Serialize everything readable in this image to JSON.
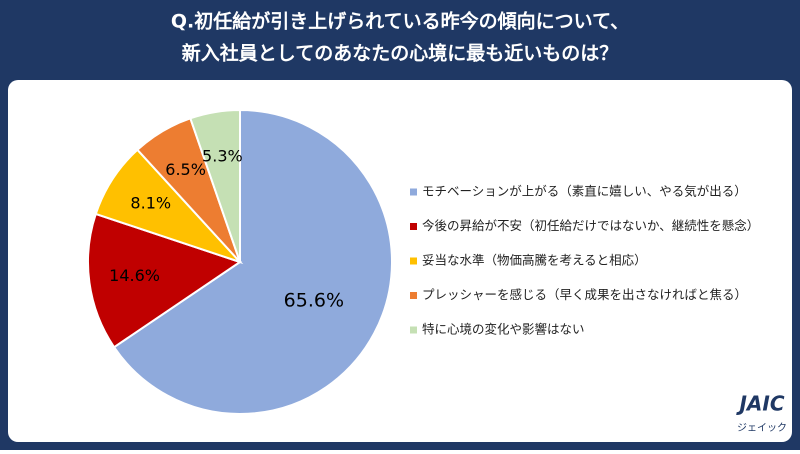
{
  "chart_data": {
    "type": "pie",
    "title": [
      "Q.初任給が引き上げられている昨今の傾向について、",
      "新入社員としてのあなたの心境に最も近いものは？"
    ],
    "categories": [
      "モチベーションが上がる（素直に嬉しい、やる気が出る）",
      "今後の昇給が不安（初任給だけではないか、継続性を懸念）",
      "妥当な水準（物価高騰を考えると相応）",
      "プレッシャーを感じる（早く成果を出さなければと焦る）",
      "特に心境の変化や影響はない"
    ],
    "values": [
      65.6,
      14.6,
      8.1,
      6.5,
      5.3
    ],
    "value_labels": [
      "65.6%",
      "14.6%",
      "8.1%",
      "6.5%",
      "5.3%"
    ],
    "colors": [
      "#8faadc",
      "#c00000",
      "#ffc000",
      "#ed7d31",
      "#c5e0b4"
    ],
    "legend": "right"
  },
  "logo": {
    "text": "JAIC",
    "subtext": "ジェイック"
  }
}
